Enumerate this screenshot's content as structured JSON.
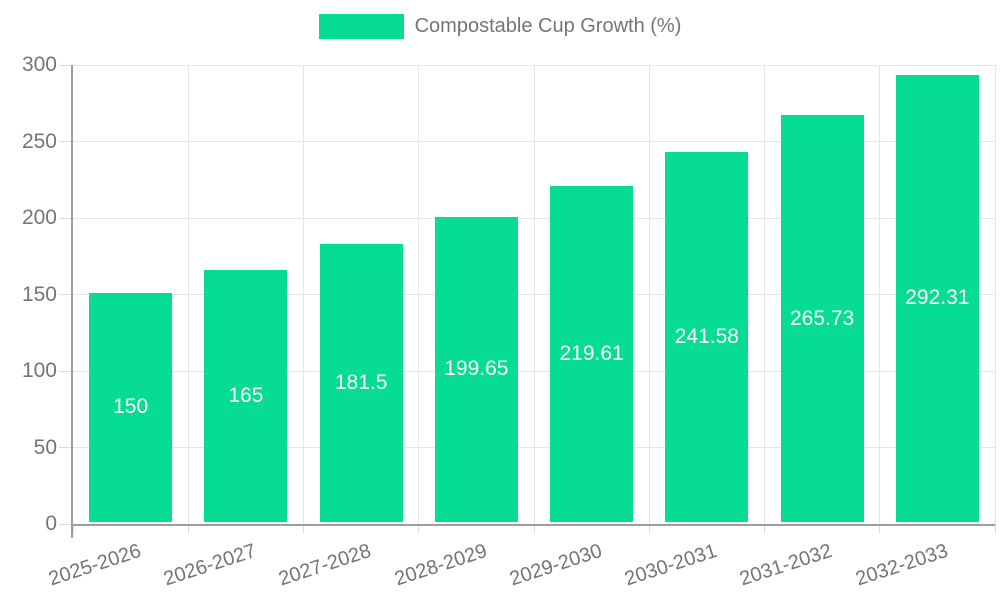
{
  "legend": {
    "label": "Compostable Cup Growth (%)"
  },
  "colors": {
    "bar": "#06DC92",
    "grid": "#e6e6e6",
    "axis": "#9e9e9e",
    "tick": "#d9d9d9",
    "tick_text": "#757575",
    "value_text": "#ffffff",
    "background": "#ffffff"
  },
  "chart_data": {
    "type": "bar",
    "title": "Compostable Cup Growth (%)",
    "categories": [
      "2025-2026",
      "2026-2027",
      "2027-2028",
      "2028-2029",
      "2029-2030",
      "2030-2031",
      "2031-2032",
      "2032-2033"
    ],
    "values": [
      150,
      165,
      181.5,
      199.65,
      219.61,
      241.58,
      265.73,
      292.31
    ],
    "value_labels": [
      "150",
      "165",
      "181.5",
      "199.65",
      "219.61",
      "241.58",
      "265.73",
      "292.31"
    ],
    "xlabel": "",
    "ylabel": "",
    "ylim": [
      0,
      300
    ],
    "yticks": [
      0,
      50,
      100,
      150,
      200,
      250,
      300
    ],
    "grid": true,
    "legend_position": "top",
    "legend_entries": [
      "Compostable Cup Growth (%)"
    ],
    "x_tick_rotation_deg": -18
  }
}
